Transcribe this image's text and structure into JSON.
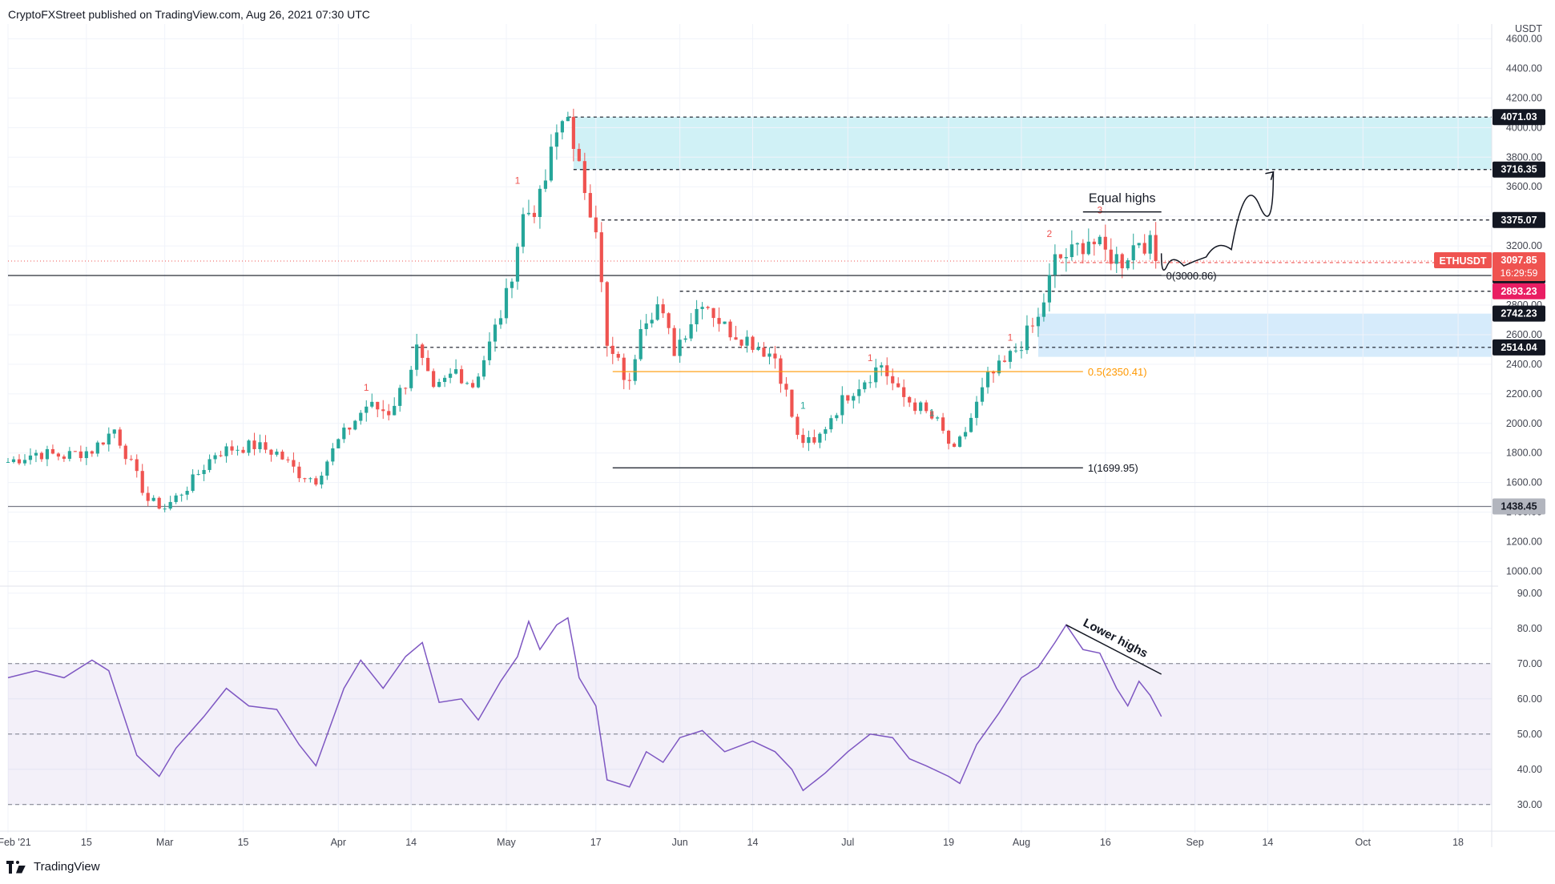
{
  "header": {
    "publisher": "CryptoFXStreet published on TradingView.com, Aug 26, 2021 07:30 UTC"
  },
  "footer": {
    "brand": "TradingView",
    "logo_icon": "tradingview-logo-icon"
  },
  "colors": {
    "up": "#26a69a",
    "down": "#ef5350",
    "rsi": "#7e57c2",
    "supply_zone": "#c8eef5",
    "demand_zone": "#cfe7fa",
    "fib": "#ff9800",
    "price_label": "#ef5350",
    "level_label": "#131722"
  },
  "chart_data": [
    {
      "type": "candlestick",
      "symbol_label": "ETHUSDT",
      "currency": "USDT",
      "price_axis": {
        "min": 1000,
        "max": 4600,
        "ticks": [
          1000,
          1200,
          1400,
          1600,
          1800,
          2000,
          2200,
          2400,
          2600,
          2800,
          3000,
          3200,
          3400,
          3600,
          3800,
          4000,
          4200,
          4400,
          4600
        ],
        "tick_labels": [
          "1000.00",
          "1200.00",
          "1400.00",
          "1600.00",
          "1800.00",
          "2000.00",
          "2200.00",
          "2400.00",
          "2600.00",
          "2800.00",
          "3000.00",
          "3200.00",
          "3400.00",
          "3600.00",
          "3800.00",
          "4000.00",
          "4200.00",
          "4400.00",
          "4600.00"
        ]
      },
      "time_axis": {
        "start": "2021-02-01",
        "end": "2021-10-24",
        "ticks": [
          {
            "date": "2021-02-01",
            "label": "Feb '21"
          },
          {
            "date": "2021-02-15",
            "label": "15"
          },
          {
            "date": "2021-03-01",
            "label": "Mar"
          },
          {
            "date": "2021-03-15",
            "label": "15"
          },
          {
            "date": "2021-04-01",
            "label": "Apr"
          },
          {
            "date": "2021-04-14",
            "label": "14"
          },
          {
            "date": "2021-05-01",
            "label": "May"
          },
          {
            "date": "2021-05-17",
            "label": "17"
          },
          {
            "date": "2021-06-01",
            "label": "Jun"
          },
          {
            "date": "2021-06-14",
            "label": "14"
          },
          {
            "date": "2021-07-01",
            "label": "Jul"
          },
          {
            "date": "2021-07-19",
            "label": "19"
          },
          {
            "date": "2021-08-01",
            "label": "Aug"
          },
          {
            "date": "2021-08-16",
            "label": "16"
          },
          {
            "date": "2021-09-01",
            "label": "Sep"
          },
          {
            "date": "2021-09-14",
            "label": "14"
          },
          {
            "date": "2021-10-01",
            "label": "Oct"
          },
          {
            "date": "2021-10-18",
            "label": "18"
          }
        ]
      },
      "anchor_closes": [
        [
          "2021-02-01",
          1740
        ],
        [
          "2021-02-06",
          1800
        ],
        [
          "2021-02-11",
          1780
        ],
        [
          "2021-02-16",
          1820
        ],
        [
          "2021-02-20",
          1960
        ],
        [
          "2021-02-23",
          1720
        ],
        [
          "2021-02-26",
          1480
        ],
        [
          "2021-03-01",
          1430
        ],
        [
          "2021-03-05",
          1570
        ],
        [
          "2021-03-10",
          1800
        ],
        [
          "2021-03-13",
          1830
        ],
        [
          "2021-03-17",
          1850
        ],
        [
          "2021-03-21",
          1800
        ],
        [
          "2021-03-25",
          1660
        ],
        [
          "2021-03-28",
          1620
        ],
        [
          "2021-04-01",
          1880
        ],
        [
          "2021-04-06",
          2120
        ],
        [
          "2021-04-10",
          2080
        ],
        [
          "2021-04-13",
          2280
        ],
        [
          "2021-04-15",
          2500
        ],
        [
          "2021-04-18",
          2200
        ],
        [
          "2021-04-22",
          2360
        ],
        [
          "2021-04-25",
          2260
        ],
        [
          "2021-04-28",
          2530
        ],
        [
          "2021-05-01",
          2850
        ],
        [
          "2021-05-04",
          3400
        ],
        [
          "2021-05-07",
          3500
        ],
        [
          "2021-05-10",
          3950
        ],
        [
          "2021-05-12",
          4150
        ],
        [
          "2021-05-13",
          3800
        ],
        [
          "2021-05-15",
          3600
        ],
        [
          "2021-05-17",
          3350
        ],
        [
          "2021-05-19",
          2500
        ],
        [
          "2021-05-21",
          2400
        ],
        [
          "2021-05-23",
          2250
        ],
        [
          "2021-05-25",
          2700
        ],
        [
          "2021-05-28",
          2800
        ],
        [
          "2021-05-31",
          2500
        ],
        [
          "2021-06-03",
          2700
        ],
        [
          "2021-06-05",
          2850
        ],
        [
          "2021-06-09",
          2650
        ],
        [
          "2021-06-14",
          2550
        ],
        [
          "2021-06-18",
          2450
        ],
        [
          "2021-06-20",
          2200
        ],
        [
          "2021-06-22",
          1900
        ],
        [
          "2021-06-25",
          1850
        ],
        [
          "2021-06-28",
          2050
        ],
        [
          "2021-07-01",
          2200
        ],
        [
          "2021-07-04",
          2300
        ],
        [
          "2021-07-07",
          2400
        ],
        [
          "2021-07-10",
          2200
        ],
        [
          "2021-07-14",
          2100
        ],
        [
          "2021-07-17",
          2000
        ],
        [
          "2021-07-20",
          1800
        ],
        [
          "2021-07-22",
          1950
        ],
        [
          "2021-07-26",
          2300
        ],
        [
          "2021-07-29",
          2400
        ],
        [
          "2021-08-01",
          2550
        ],
        [
          "2021-08-04",
          2700
        ],
        [
          "2021-08-07",
          3100
        ],
        [
          "2021-08-10",
          3150
        ],
        [
          "2021-08-13",
          3250
        ],
        [
          "2021-08-16",
          3150
        ],
        [
          "2021-08-19",
          3100
        ],
        [
          "2021-08-22",
          3250
        ],
        [
          "2021-08-24",
          3200
        ],
        [
          "2021-08-25",
          3097.85
        ]
      ],
      "levels": [
        {
          "name": "supply-top",
          "value": 4071.03,
          "label": "4071.03",
          "style": "dashed"
        },
        {
          "name": "supply-bottom",
          "value": 3716.35,
          "label": "3716.35",
          "style": "dashed"
        },
        {
          "name": "equal-highs",
          "value": 3375.07,
          "label": "3375.07",
          "style": "dashed"
        },
        {
          "name": "psych-3000",
          "value": 3000.0,
          "label": "3000.00",
          "style": "solid"
        },
        {
          "name": "red-dashed",
          "value": 3087.13,
          "label": "3087.13",
          "style": "dashed-red"
        },
        {
          "name": "mid-dashed",
          "value": 2893.23,
          "label": "2893.23",
          "style": "dashed"
        },
        {
          "name": "demand-top",
          "value": 2742.23,
          "label": "2742.23",
          "style": "none"
        },
        {
          "name": "demand-bottom",
          "value": 2514.04,
          "label": "2514.04",
          "style": "dashed"
        },
        {
          "name": "support",
          "value": 1438.45,
          "label": "1438.45",
          "style": "solid-gray"
        }
      ],
      "zones": [
        {
          "name": "supply-zone",
          "from": "2021-05-13",
          "to": "2021-10-24",
          "low": 3716.35,
          "high": 4071.03
        },
        {
          "name": "demand-zone",
          "from": "2021-08-04",
          "to": "2021-10-24",
          "low": 2450,
          "high": 2742.23
        }
      ],
      "current_price": {
        "label": "ETHUSDT",
        "value": "3097.85",
        "countdown": "16:29:59"
      },
      "fibonacci": [
        {
          "label": "0(3000.86)",
          "value": 3000.86,
          "color": "#131722"
        },
        {
          "label": "0.5(2350.41)",
          "value": 2350.41,
          "color": "#ff9800"
        },
        {
          "label": "1(1699.95)",
          "value": 1699.95,
          "color": "#131722"
        }
      ],
      "annotations": {
        "equal_highs": "Equal highs"
      },
      "td_counts": [
        {
          "date": "2021-04-06",
          "text": "1",
          "color": "#ef5350",
          "above": true,
          "price": 2220
        },
        {
          "date": "2021-05-03",
          "text": "1",
          "color": "#ef5350",
          "above": true,
          "price": 3620
        },
        {
          "date": "2021-06-23",
          "text": "1",
          "color": "#26a69a",
          "above": true,
          "price": 2100
        },
        {
          "date": "2021-07-05",
          "text": "1",
          "color": "#ef5350",
          "above": true,
          "price": 2420
        },
        {
          "date": "2021-07-16",
          "text": "1",
          "color": "#26a69a",
          "above": true,
          "price": 2050
        },
        {
          "date": "2021-07-30",
          "text": "1",
          "color": "#ef5350",
          "above": true,
          "price": 2560
        },
        {
          "date": "2021-08-06",
          "text": "2",
          "color": "#ef5350",
          "above": true,
          "price": 3260
        },
        {
          "date": "2021-08-15",
          "text": "3",
          "color": "#ef5350",
          "above": true,
          "price": 3420
        }
      ],
      "projection": [
        [
          "2021-08-26",
          3150
        ],
        [
          "2021-08-28",
          2980
        ],
        [
          "2021-09-01",
          3150
        ],
        [
          "2021-09-05",
          3100
        ],
        [
          "2021-09-10",
          3250
        ],
        [
          "2021-09-15",
          3700
        ]
      ]
    },
    {
      "type": "line",
      "name": "RSI",
      "y_axis": {
        "min": 25,
        "max": 90,
        "ticks": [
          30,
          40,
          50,
          60,
          70,
          80,
          90
        ],
        "tick_labels": [
          "30.00",
          "40.00",
          "50.00",
          "60.00",
          "70.00",
          "80.00",
          "90.00"
        ]
      },
      "bands": {
        "upper": 70,
        "middle": 50,
        "lower": 30
      },
      "points": [
        [
          "2021-02-01",
          66
        ],
        [
          "2021-02-06",
          68
        ],
        [
          "2021-02-11",
          66
        ],
        [
          "2021-02-16",
          71
        ],
        [
          "2021-02-19",
          68
        ],
        [
          "2021-02-24",
          44
        ],
        [
          "2021-02-28",
          38
        ],
        [
          "2021-03-03",
          46
        ],
        [
          "2021-03-08",
          55
        ],
        [
          "2021-03-12",
          63
        ],
        [
          "2021-03-16",
          58
        ],
        [
          "2021-03-21",
          57
        ],
        [
          "2021-03-25",
          47
        ],
        [
          "2021-03-28",
          41
        ],
        [
          "2021-04-02",
          63
        ],
        [
          "2021-04-05",
          71
        ],
        [
          "2021-04-09",
          63
        ],
        [
          "2021-04-13",
          72
        ],
        [
          "2021-04-16",
          76
        ],
        [
          "2021-04-19",
          59
        ],
        [
          "2021-04-23",
          60
        ],
        [
          "2021-04-26",
          54
        ],
        [
          "2021-04-30",
          65
        ],
        [
          "2021-05-03",
          72
        ],
        [
          "2021-05-05",
          82
        ],
        [
          "2021-05-07",
          74
        ],
        [
          "2021-05-10",
          81
        ],
        [
          "2021-05-12",
          83
        ],
        [
          "2021-05-14",
          66
        ],
        [
          "2021-05-17",
          58
        ],
        [
          "2021-05-19",
          37
        ],
        [
          "2021-05-23",
          35
        ],
        [
          "2021-05-26",
          45
        ],
        [
          "2021-05-29",
          42
        ],
        [
          "2021-06-01",
          49
        ],
        [
          "2021-06-05",
          51
        ],
        [
          "2021-06-09",
          45
        ],
        [
          "2021-06-14",
          48
        ],
        [
          "2021-06-18",
          45
        ],
        [
          "2021-06-21",
          40
        ],
        [
          "2021-06-23",
          34
        ],
        [
          "2021-06-27",
          39
        ],
        [
          "2021-07-01",
          45
        ],
        [
          "2021-07-05",
          50
        ],
        [
          "2021-07-09",
          49
        ],
        [
          "2021-07-12",
          43
        ],
        [
          "2021-07-15",
          41
        ],
        [
          "2021-07-19",
          38
        ],
        [
          "2021-07-21",
          36
        ],
        [
          "2021-07-24",
          47
        ],
        [
          "2021-07-28",
          56
        ],
        [
          "2021-08-01",
          66
        ],
        [
          "2021-08-04",
          69
        ],
        [
          "2021-08-07",
          76
        ],
        [
          "2021-08-09",
          81
        ],
        [
          "2021-08-12",
          74
        ],
        [
          "2021-08-15",
          73
        ],
        [
          "2021-08-18",
          63
        ],
        [
          "2021-08-20",
          58
        ],
        [
          "2021-08-22",
          65
        ],
        [
          "2021-08-24",
          61
        ],
        [
          "2021-08-26",
          55
        ]
      ],
      "trendline": [
        [
          "2021-08-09",
          81
        ],
        [
          "2021-08-26",
          67
        ]
      ],
      "annotation": "Lower highs"
    }
  ]
}
